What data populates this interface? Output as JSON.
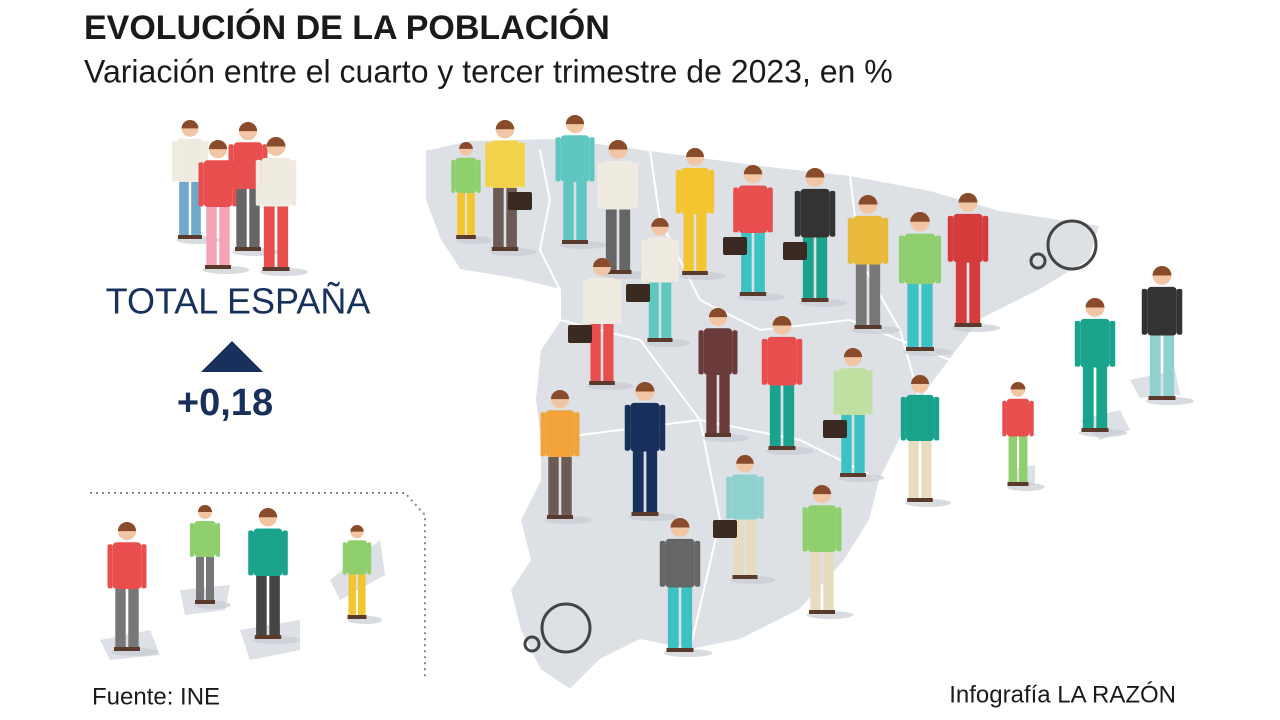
{
  "header": {
    "title": "EVOLUCIÓN DE LA POBLACIÓN",
    "subtitle": "Variación entre el cuarto y tercer trimestre de 2023, en %"
  },
  "summary": {
    "label": "TOTAL ESPAÑA",
    "value": "+0,18"
  },
  "footer": {
    "source": "Fuente: INE",
    "credit": "Infografía LA RAZÓN"
  }
}
